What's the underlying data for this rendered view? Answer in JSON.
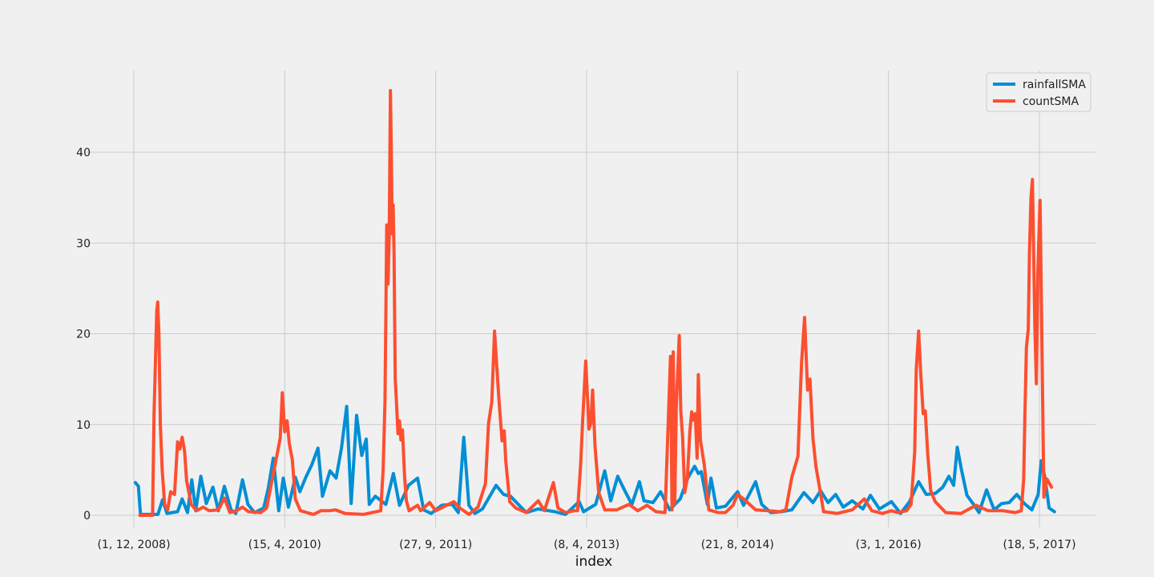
{
  "chart_data": {
    "type": "line",
    "xlabel": "index",
    "ylabel": "",
    "ylim": [
      -1.5,
      49
    ],
    "grid": true,
    "legend_position": "top-right",
    "x_tick_labels": [
      "(1, 12, 2008)",
      "(15, 4, 2010)",
      "(27, 9, 2011)",
      "(8, 4, 2013)",
      "(21, 8, 2014)",
      "(3, 1, 2016)",
      "(18, 5, 2017)"
    ],
    "x_tick_positions": [
      0,
      500,
      1000,
      1500,
      2000,
      2500,
      3000
    ],
    "x_range": [
      0,
      3120
    ],
    "y_ticks": [
      0,
      10,
      20,
      30,
      40
    ],
    "y_tick_labels": [
      "0",
      "10",
      "20",
      "30",
      "40"
    ],
    "series": [
      {
        "name": "rainfallSMA",
        "color": "#008fd5",
        "points": [
          [
            5,
            3.6
          ],
          [
            15,
            3.2
          ],
          [
            22,
            0.1
          ],
          [
            80,
            0.1
          ],
          [
            95,
            1.7
          ],
          [
            110,
            0.2
          ],
          [
            145,
            0.4
          ],
          [
            160,
            1.8
          ],
          [
            178,
            0.3
          ],
          [
            192,
            3.9
          ],
          [
            205,
            0.5
          ],
          [
            222,
            4.3
          ],
          [
            240,
            1.3
          ],
          [
            262,
            3.1
          ],
          [
            280,
            0.5
          ],
          [
            300,
            3.2
          ],
          [
            322,
            0.6
          ],
          [
            338,
            0.2
          ],
          [
            360,
            3.9
          ],
          [
            378,
            1.2
          ],
          [
            400,
            0.3
          ],
          [
            430,
            0.8
          ],
          [
            445,
            2.9
          ],
          [
            462,
            6.3
          ],
          [
            480,
            0.5
          ],
          [
            495,
            4.1
          ],
          [
            512,
            0.9
          ],
          [
            535,
            4.2
          ],
          [
            550,
            2.6
          ],
          [
            570,
            4.2
          ],
          [
            590,
            5.6
          ],
          [
            610,
            7.4
          ],
          [
            625,
            2.1
          ],
          [
            650,
            4.9
          ],
          [
            670,
            4.1
          ],
          [
            688,
            7.4
          ],
          [
            705,
            12
          ],
          [
            720,
            1.3
          ],
          [
            738,
            11
          ],
          [
            755,
            6.6
          ],
          [
            770,
            8.4
          ],
          [
            780,
            1.2
          ],
          [
            800,
            2.1
          ],
          [
            835,
            1.2
          ],
          [
            860,
            4.6
          ],
          [
            880,
            1.1
          ],
          [
            910,
            3.3
          ],
          [
            940,
            4.1
          ],
          [
            960,
            0.6
          ],
          [
            985,
            0.2
          ],
          [
            1020,
            1.1
          ],
          [
            1055,
            1.2
          ],
          [
            1075,
            0.3
          ],
          [
            1093,
            8.6
          ],
          [
            1110,
            1.1
          ],
          [
            1130,
            0.2
          ],
          [
            1155,
            0.7
          ],
          [
            1200,
            3.3
          ],
          [
            1225,
            2.3
          ],
          [
            1248,
            2.1
          ],
          [
            1265,
            1.5
          ],
          [
            1300,
            0.3
          ],
          [
            1340,
            0.7
          ],
          [
            1395,
            0.4
          ],
          [
            1430,
            0.1
          ],
          [
            1475,
            1.5
          ],
          [
            1490,
            0.4
          ],
          [
            1530,
            1.2
          ],
          [
            1560,
            4.9
          ],
          [
            1580,
            1.6
          ],
          [
            1603,
            4.3
          ],
          [
            1625,
            2.8
          ],
          [
            1650,
            1.2
          ],
          [
            1675,
            3.7
          ],
          [
            1690,
            1.6
          ],
          [
            1720,
            1.4
          ],
          [
            1745,
            2.6
          ],
          [
            1775,
            0.6
          ],
          [
            1810,
            1.8
          ],
          [
            1835,
            4.1
          ],
          [
            1858,
            5.4
          ],
          [
            1870,
            4.6
          ],
          [
            1880,
            4.8
          ],
          [
            1900,
            1.2
          ],
          [
            1912,
            4.1
          ],
          [
            1930,
            0.8
          ],
          [
            1960,
            1.0
          ],
          [
            2000,
            2.6
          ],
          [
            2020,
            1.1
          ],
          [
            2060,
            3.7
          ],
          [
            2080,
            1.2
          ],
          [
            2110,
            0.3
          ],
          [
            2145,
            0.4
          ],
          [
            2180,
            0.6
          ],
          [
            2220,
            2.5
          ],
          [
            2250,
            1.4
          ],
          [
            2275,
            2.7
          ],
          [
            2300,
            1.4
          ],
          [
            2325,
            2.3
          ],
          [
            2350,
            0.9
          ],
          [
            2380,
            1.6
          ],
          [
            2415,
            0.7
          ],
          [
            2440,
            2.2
          ],
          [
            2470,
            0.7
          ],
          [
            2510,
            1.5
          ],
          [
            2540,
            0.2
          ],
          [
            2570,
            1.5
          ],
          [
            2600,
            3.7
          ],
          [
            2625,
            2.3
          ],
          [
            2655,
            2.4
          ],
          [
            2680,
            3.1
          ],
          [
            2700,
            4.3
          ],
          [
            2716,
            3.3
          ],
          [
            2728,
            7.5
          ],
          [
            2742,
            5.0
          ],
          [
            2760,
            2.2
          ],
          [
            2780,
            1.3
          ],
          [
            2800,
            0.3
          ],
          [
            2825,
            2.8
          ],
          [
            2850,
            0.6
          ],
          [
            2875,
            1.3
          ],
          [
            2900,
            1.4
          ],
          [
            2925,
            2.3
          ],
          [
            2950,
            1.3
          ],
          [
            2975,
            0.6
          ],
          [
            2996,
            2.3
          ],
          [
            3006,
            6
          ],
          [
            3018,
            4.2
          ],
          [
            3032,
            0.8
          ],
          [
            3050,
            0.4
          ]
        ]
      },
      {
        "name": "countSMA",
        "color": "#fc4f30",
        "points": [
          [
            20,
            0
          ],
          [
            62,
            0
          ],
          [
            67,
            11
          ],
          [
            76,
            22.5
          ],
          [
            79,
            23.5
          ],
          [
            83,
            20
          ],
          [
            88,
            10
          ],
          [
            94,
            5
          ],
          [
            102,
            1.2
          ],
          [
            112,
            0.6
          ],
          [
            122,
            2.6
          ],
          [
            135,
            2.3
          ],
          [
            145,
            8.1
          ],
          [
            152,
            7.3
          ],
          [
            160,
            8.6
          ],
          [
            168,
            7.1
          ],
          [
            175,
            3.8
          ],
          [
            190,
            1.2
          ],
          [
            208,
            0.5
          ],
          [
            230,
            0.9
          ],
          [
            250,
            0.5
          ],
          [
            280,
            0.6
          ],
          [
            300,
            1.9
          ],
          [
            318,
            0.3
          ],
          [
            340,
            0.5
          ],
          [
            360,
            0.9
          ],
          [
            380,
            0.4
          ],
          [
            420,
            0.3
          ],
          [
            440,
            0.8
          ],
          [
            485,
            8.5
          ],
          [
            492,
            13.5
          ],
          [
            500,
            9.2
          ],
          [
            508,
            10.4
          ],
          [
            515,
            7.9
          ],
          [
            525,
            6.1
          ],
          [
            535,
            1.8
          ],
          [
            552,
            0.5
          ],
          [
            595,
            0.1
          ],
          [
            620,
            0.5
          ],
          [
            648,
            0.5
          ],
          [
            668,
            0.6
          ],
          [
            700,
            0.2
          ],
          [
            760,
            0.1
          ],
          [
            818,
            0.5
          ],
          [
            826,
            5
          ],
          [
            832,
            12.5
          ],
          [
            838,
            32
          ],
          [
            842,
            25.5
          ],
          [
            846,
            31
          ],
          [
            850,
            46.8
          ],
          [
            853,
            40
          ],
          [
            856,
            31
          ],
          [
            859,
            34.2
          ],
          [
            862,
            29
          ],
          [
            866,
            15
          ],
          [
            870,
            12.5
          ],
          [
            875,
            9
          ],
          [
            880,
            10.4
          ],
          [
            885,
            8.3
          ],
          [
            890,
            9.4
          ],
          [
            897,
            4.2
          ],
          [
            903,
            1.6
          ],
          [
            912,
            0.5
          ],
          [
            940,
            1.1
          ],
          [
            950,
            0.5
          ],
          [
            980,
            1.4
          ],
          [
            1000,
            0.5
          ],
          [
            1060,
            1.5
          ],
          [
            1080,
            0.8
          ],
          [
            1110,
            0.1
          ],
          [
            1140,
            0.9
          ],
          [
            1165,
            3.5
          ],
          [
            1175,
            10.1
          ],
          [
            1186,
            12.5
          ],
          [
            1195,
            20.3
          ],
          [
            1202,
            16.5
          ],
          [
            1210,
            12.5
          ],
          [
            1220,
            8.2
          ],
          [
            1227,
            9.3
          ],
          [
            1232,
            6.0
          ],
          [
            1245,
            1.5
          ],
          [
            1265,
            0.8
          ],
          [
            1300,
            0.3
          ],
          [
            1340,
            1.6
          ],
          [
            1360,
            0.5
          ],
          [
            1390,
            3.6
          ],
          [
            1405,
            0.8
          ],
          [
            1430,
            0.3
          ],
          [
            1460,
            0.5
          ],
          [
            1470,
            0.5
          ],
          [
            1480,
            5.5
          ],
          [
            1487,
            10.5
          ],
          [
            1497,
            17
          ],
          [
            1502,
            13.5
          ],
          [
            1508,
            9.5
          ],
          [
            1514,
            10.2
          ],
          [
            1520,
            13.8
          ],
          [
            1528,
            7.6
          ],
          [
            1540,
            2.5
          ],
          [
            1560,
            0.6
          ],
          [
            1600,
            0.6
          ],
          [
            1640,
            1.2
          ],
          [
            1670,
            0.5
          ],
          [
            1700,
            1.1
          ],
          [
            1730,
            0.4
          ],
          [
            1760,
            0.3
          ],
          [
            1778,
            17.5
          ],
          [
            1783,
            0.6
          ],
          [
            1787,
            18
          ],
          [
            1792,
            1.2
          ],
          [
            1797,
            12
          ],
          [
            1807,
            19.8
          ],
          [
            1812,
            11.5
          ],
          [
            1818,
            8.6
          ],
          [
            1825,
            2.5
          ],
          [
            1834,
            4.2
          ],
          [
            1842,
            9.2
          ],
          [
            1848,
            11.4
          ],
          [
            1853,
            10.5
          ],
          [
            1860,
            11.2
          ],
          [
            1866,
            6.3
          ],
          [
            1870,
            15.5
          ],
          [
            1877,
            8.3
          ],
          [
            1890,
            5.5
          ],
          [
            1905,
            0.6
          ],
          [
            1935,
            0.3
          ],
          [
            1960,
            0.3
          ],
          [
            1985,
            1.1
          ],
          [
            2000,
            2.3
          ],
          [
            2020,
            1.8
          ],
          [
            2060,
            0.6
          ],
          [
            2100,
            0.5
          ],
          [
            2140,
            0.4
          ],
          [
            2160,
            0.6
          ],
          [
            2180,
            4.2
          ],
          [
            2200,
            6.5
          ],
          [
            2212,
            16.8
          ],
          [
            2222,
            21.8
          ],
          [
            2232,
            13.8
          ],
          [
            2240,
            15
          ],
          [
            2250,
            8.4
          ],
          [
            2260,
            5.3
          ],
          [
            2272,
            3.0
          ],
          [
            2285,
            0.4
          ],
          [
            2330,
            0.2
          ],
          [
            2380,
            0.6
          ],
          [
            2420,
            1.8
          ],
          [
            2445,
            0.5
          ],
          [
            2480,
            0.2
          ],
          [
            2510,
            0.5
          ],
          [
            2530,
            0.3
          ],
          [
            2560,
            0.5
          ],
          [
            2575,
            1.2
          ],
          [
            2587,
            7
          ],
          [
            2592,
            16
          ],
          [
            2600,
            20.3
          ],
          [
            2607,
            15.5
          ],
          [
            2615,
            11.2
          ],
          [
            2622,
            11.5
          ],
          [
            2630,
            6.8
          ],
          [
            2640,
            2.7
          ],
          [
            2655,
            1.5
          ],
          [
            2690,
            0.3
          ],
          [
            2740,
            0.2
          ],
          [
            2790,
            1.1
          ],
          [
            2830,
            0.5
          ],
          [
            2880,
            0.5
          ],
          [
            2920,
            0.3
          ],
          [
            2940,
            0.5
          ],
          [
            2948,
            4
          ],
          [
            2952,
            11
          ],
          [
            2957,
            18.5
          ],
          [
            2963,
            20.5
          ],
          [
            2967,
            29
          ],
          [
            2972,
            35
          ],
          [
            2977,
            37
          ],
          [
            2985,
            21
          ],
          [
            2990,
            14.5
          ],
          [
            2995,
            27
          ],
          [
            3002,
            34.7
          ],
          [
            3008,
            20
          ],
          [
            3015,
            2.0
          ],
          [
            3025,
            4.0
          ],
          [
            3040,
            3.1
          ]
        ]
      }
    ]
  }
}
